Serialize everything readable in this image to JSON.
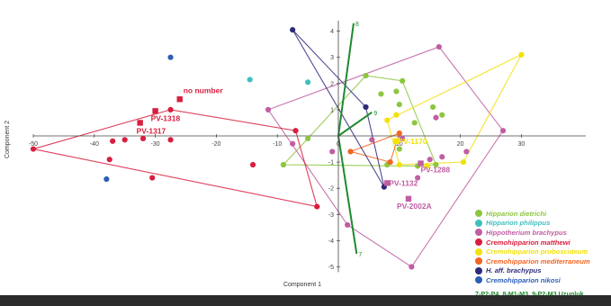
{
  "chart_data": {
    "type": "scatter",
    "xlabel": "Component 1",
    "ylabel": "Component 2",
    "xlim": [
      -50,
      38
    ],
    "ylim": [
      -5.2,
      4.4
    ],
    "x_ticks": [
      -50,
      -40,
      -30,
      -20,
      -10,
      0,
      10,
      20,
      30
    ],
    "y_ticks": [
      -5,
      -4,
      -3,
      -2,
      -1,
      1,
      2,
      3,
      4
    ],
    "grid": false,
    "legend_position": "bottom-right",
    "series": [
      {
        "name": "Hipparion dietrichi",
        "color": "#8dc63f",
        "points": [
          [
            -5,
            -0.1
          ],
          [
            -9,
            -1.1
          ],
          [
            4.5,
            2.3
          ],
          [
            7,
            1.6
          ],
          [
            8,
            -1.1
          ],
          [
            9.5,
            1.7
          ],
          [
            10.5,
            2.1
          ],
          [
            10,
            1.2
          ],
          [
            10,
            -0.5
          ],
          [
            12.5,
            0.5
          ],
          [
            13,
            -1.15
          ],
          [
            15.5,
            1.1
          ],
          [
            16,
            -1.1
          ],
          [
            17,
            0.8
          ]
        ],
        "hull": [
          [
            -9,
            -1.1
          ],
          [
            -5,
            -0.1
          ],
          [
            4.5,
            2.3
          ],
          [
            10.5,
            2.1
          ],
          [
            16,
            -1.1
          ],
          [
            13,
            -1.15
          ]
        ]
      },
      {
        "name": "Hipparion philippus",
        "color": "#3fbfbf",
        "points": [
          [
            -14.5,
            2.15
          ],
          [
            -5,
            2.05
          ]
        ]
      },
      {
        "name": "Hippotherium brachypus",
        "color": "#c05ea3",
        "points": [
          [
            -11.5,
            1.0
          ],
          [
            -7.5,
            -0.3
          ],
          [
            -1,
            -0.6
          ],
          [
            1.5,
            -3.4
          ],
          [
            5.5,
            -0.15
          ],
          [
            10.5,
            -0.1
          ],
          [
            12,
            -5
          ],
          [
            13,
            -1.6
          ],
          [
            15,
            -0.9
          ],
          [
            16,
            0.7
          ],
          [
            17,
            -0.8
          ],
          [
            16.5,
            3.4
          ],
          [
            21,
            -0.6
          ],
          [
            27,
            0.2
          ]
        ],
        "hull": [
          [
            -11.5,
            1.0
          ],
          [
            16.5,
            3.4
          ],
          [
            27,
            0.2
          ],
          [
            12,
            -5
          ],
          [
            1.5,
            -3.4
          ]
        ]
      },
      {
        "name": "Cremohipparion matthewi",
        "color": "#d81e3f",
        "points": [
          [
            -50,
            -0.5
          ],
          [
            -37.5,
            -0.9
          ],
          [
            -37,
            -0.2
          ],
          [
            -35,
            -0.15
          ],
          [
            -32,
            -0.1
          ],
          [
            -30.5,
            -1.6
          ],
          [
            -27.5,
            1.0
          ],
          [
            -27.5,
            -0.15
          ],
          [
            -14,
            -1.1
          ],
          [
            -7,
            0.2
          ],
          [
            -3.5,
            -2.7
          ]
        ],
        "hull": [
          [
            -50,
            -0.5
          ],
          [
            -27.5,
            1.0
          ],
          [
            -7,
            0.2
          ],
          [
            -3.5,
            -2.7
          ]
        ]
      },
      {
        "name": "Cremohipparion proboscideum",
        "color": "#f2e10a",
        "points": [
          [
            8,
            0.6
          ],
          [
            9.5,
            0.8
          ],
          [
            10,
            -1.1
          ],
          [
            14.5,
            -1.15
          ],
          [
            20.5,
            -1.0
          ],
          [
            30,
            3.1
          ]
        ],
        "hull": [
          [
            8,
            0.6
          ],
          [
            30,
            3.1
          ],
          [
            20.5,
            -1.0
          ],
          [
            10,
            -1.1
          ]
        ]
      },
      {
        "name": "Cremohipparion mediterraneum",
        "color": "#f26522",
        "points": [
          [
            2,
            -0.6
          ],
          [
            8.5,
            -1.0
          ],
          [
            10,
            0.1
          ]
        ],
        "hull": [
          [
            2,
            -0.6
          ],
          [
            10,
            0.1
          ],
          [
            8.5,
            -1.0
          ]
        ]
      },
      {
        "name": "H. aff. brachypus",
        "color": "#2e2a7a",
        "points": [
          [
            -7.5,
            4.05
          ],
          [
            4.5,
            1.1
          ],
          [
            7.5,
            -1.95
          ]
        ],
        "hull": [
          [
            -7.5,
            4.05
          ],
          [
            4.5,
            1.1
          ],
          [
            7.5,
            -1.95
          ]
        ]
      },
      {
        "name": "Cremohipparion nikosi",
        "color": "#2c5fb5",
        "points": [
          [
            -27.5,
            3.0
          ],
          [
            -38,
            -1.65
          ]
        ]
      }
    ],
    "specimens": [
      {
        "label": "no number",
        "x": -26,
        "y": 1.4,
        "color": "#d81e3f",
        "dx": 4,
        "dy": -7
      },
      {
        "label": "PV-1318",
        "x": -30,
        "y": 0.95,
        "color": "#d81e3f",
        "dx": -5,
        "dy": 11
      },
      {
        "label": "PV-1317",
        "x": -32.5,
        "y": 0.5,
        "color": "#d81e3f",
        "dx": -4,
        "dy": 12
      },
      {
        "label": "PV-1170",
        "x": 9.5,
        "y": -0.2,
        "color": "#f2e10a",
        "dx": 2,
        "dy": 3
      },
      {
        "label": "PV-1288",
        "x": 13.5,
        "y": -1.05,
        "color": "#c05ea3",
        "dx": 0,
        "dy": 10
      },
      {
        "label": "PV-1132",
        "x": 8,
        "y": -1.8,
        "color": "#c05ea3",
        "dx": 2,
        "dy": 3
      },
      {
        "label": "PV-2002A",
        "x": 11.5,
        "y": -2.4,
        "color": "#c05ea3",
        "dx": -13,
        "dy": 11
      }
    ],
    "vectors": [
      {
        "label": "8",
        "x": 2.5,
        "y": 4.3
      },
      {
        "label": "7",
        "x": 3,
        "y": -4.5
      },
      {
        "label": "9",
        "x": 5.5,
        "y": 0.9
      }
    ]
  },
  "legend": {
    "items": [
      {
        "label": "Hipparion dietrichi",
        "color": "#8dc63f"
      },
      {
        "label": "Hipparion philippus",
        "color": "#3fbfbf"
      },
      {
        "label": "Hippotherium brachypus",
        "color": "#c05ea3"
      },
      {
        "label": "Cremohipparion matthewi",
        "color": "#d81e3f"
      },
      {
        "label": "Cremohipparion proboscideum",
        "color": "#f2e10a"
      },
      {
        "label": "Cremohipparion mediterraneum",
        "color": "#f26522"
      },
      {
        "label": "H. aff. brachypus",
        "color": "#2e2a7a"
      },
      {
        "label": "Cremohipparion nikosi",
        "color": "#2c5fb5"
      }
    ],
    "note": "7-P2-P4, 8-M1-M3, 9-P2-M3 Uzunluk",
    "note_color": "#1e8a2e"
  },
  "colors": {
    "vector": "#1e8a2e",
    "axis": "#444444",
    "background": "#ffffff"
  }
}
